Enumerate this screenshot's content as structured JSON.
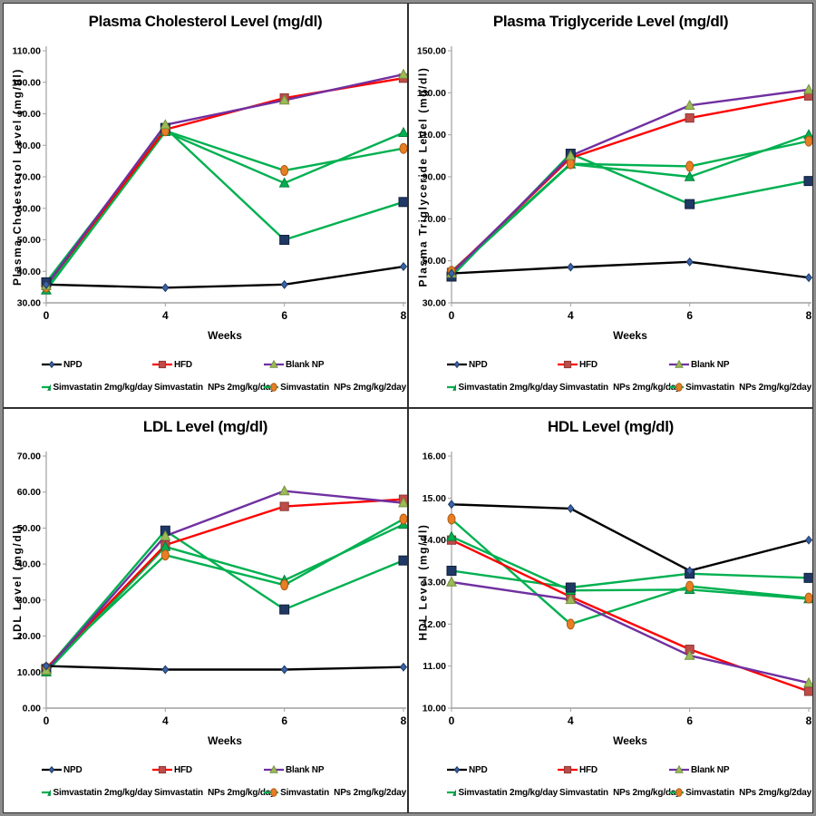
{
  "figure": {
    "layout": "2x2-grid",
    "background": "#ffffff",
    "outer_border_color": "#8c8c8c",
    "panel_border_color": "#2f2f2f"
  },
  "series_styles": [
    {
      "marker": "diamond",
      "line": "#000000",
      "fill": "#3A64A8",
      "edge": "#1F3864",
      "msize": 4.2
    },
    {
      "marker": "square",
      "line": "#FE0000",
      "fill": "#BE4B48",
      "edge": "#8E3937",
      "msize": 4.6
    },
    {
      "marker": "triangle",
      "line": "#7030A0",
      "fill": "#9BBB59",
      "edge": "#75913E",
      "msize": 5.4
    },
    {
      "marker": "triangle",
      "line": "#00B050",
      "fill": "#00B050",
      "edge": "#007E39",
      "msize": 5.4
    },
    {
      "marker": "square",
      "line": "#00B050",
      "fill": "#1F3864",
      "edge": "#11203C",
      "msize": 5.0
    },
    {
      "marker": "circle",
      "line": "#00B050",
      "fill": "#E87E24",
      "edge": "#AE5A11",
      "msize": 4.3
    }
  ],
  "chart_data": [
    {
      "type": "line",
      "title": "Plasma Cholesterol Level (mg/dl)",
      "ylabel": "Plasma Cholesterol Level (mg/dl)",
      "xlabel": "Weeks",
      "ylim": [
        30,
        110
      ],
      "ytick_step": 10,
      "grid": false,
      "legend_position": "bottom",
      "categories": [
        0,
        4,
        6,
        8
      ],
      "series": [
        {
          "name": "NPD",
          "values": [
            35.8,
            34.8,
            35.8,
            41.5
          ]
        },
        {
          "name": "HFD",
          "values": [
            35.5,
            85.0,
            95.0,
            101.3
          ]
        },
        {
          "name": "Blank NP",
          "values": [
            35.5,
            86.5,
            94.3,
            102.5
          ]
        },
        {
          "name": "Simvastatin 2mg/kg/day",
          "values": [
            34.0,
            84.3,
            68.0,
            84.0
          ]
        },
        {
          "name": "Simvastatin  NPs 2mg/kg/day",
          "values": [
            36.5,
            85.5,
            50.0,
            62.0
          ]
        },
        {
          "name": "Simvastatin  NPs 2mg/kg/2day",
          "values": [
            35.0,
            84.6,
            72.0,
            79.0
          ]
        }
      ]
    },
    {
      "type": "line",
      "title": "Plasma Triglyceride Level (mg/dl)",
      "ylabel": "Plasma Triglyceride Level (mg/dl)",
      "xlabel": "Weeks",
      "ylim": [
        30,
        150
      ],
      "ytick_step": 20,
      "grid": false,
      "legend_position": "bottom",
      "categories": [
        0,
        4,
        6,
        8
      ],
      "series": [
        {
          "name": "NPD",
          "values": [
            44.0,
            47.0,
            49.5,
            42.0
          ]
        },
        {
          "name": "HFD",
          "values": [
            44.5,
            99.0,
            118.0,
            128.5
          ]
        },
        {
          "name": "Blank NP",
          "values": [
            44.0,
            100.0,
            124.0,
            131.5
          ]
        },
        {
          "name": "Simvastatin 2mg/kg/day",
          "values": [
            44.0,
            96.0,
            90.0,
            110.0
          ]
        },
        {
          "name": "Simvastatin  NPs 2mg/kg/day",
          "values": [
            42.5,
            101.0,
            77.0,
            88.0
          ]
        },
        {
          "name": "Simvastatin  NPs 2mg/kg/2day",
          "values": [
            45.0,
            96.2,
            95.0,
            107.0
          ]
        }
      ]
    },
    {
      "type": "line",
      "title": "LDL Level (mg/dl)",
      "ylabel": "LDL Level (mg/dl)",
      "xlabel": "Weeks",
      "ylim": [
        0,
        70
      ],
      "ytick_step": 10,
      "grid": false,
      "legend_position": "bottom",
      "categories": [
        0,
        4,
        6,
        8
      ],
      "series": [
        {
          "name": "NPD",
          "values": [
            11.7,
            10.7,
            10.7,
            11.4
          ]
        },
        {
          "name": "HFD",
          "values": [
            11.0,
            45.3,
            56.0,
            58.0
          ]
        },
        {
          "name": "Blank NP",
          "values": [
            10.5,
            47.8,
            60.3,
            57.0
          ]
        },
        {
          "name": "Simvastatin 2mg/kg/day",
          "values": [
            10.0,
            44.8,
            35.5,
            51.0
          ]
        },
        {
          "name": "Simvastatin  NPs 2mg/kg/day",
          "values": [
            10.8,
            49.3,
            27.4,
            41.0
          ]
        },
        {
          "name": "Simvastatin  NPs 2mg/kg/2day",
          "values": [
            11.2,
            42.5,
            34.2,
            52.5
          ]
        }
      ]
    },
    {
      "type": "line",
      "title": "HDL Level (mg/dl)",
      "ylabel": "HDL Level (mg/dl)",
      "xlabel": "Weeks",
      "ylim": [
        10,
        16
      ],
      "ytick_step": 1,
      "grid": false,
      "legend_position": "bottom",
      "categories": [
        0,
        4,
        6,
        8
      ],
      "series": [
        {
          "name": "NPD",
          "values": [
            14.85,
            14.75,
            13.27,
            14.0
          ]
        },
        {
          "name": "HFD",
          "values": [
            14.0,
            12.65,
            11.4,
            10.4
          ]
        },
        {
          "name": "Blank NP",
          "values": [
            13.0,
            12.58,
            11.25,
            10.6
          ]
        },
        {
          "name": "Simvastatin 2mg/kg/day",
          "values": [
            14.08,
            12.8,
            12.82,
            12.6
          ]
        },
        {
          "name": "Simvastatin  NPs 2mg/kg/day",
          "values": [
            13.27,
            12.87,
            13.2,
            13.1
          ]
        },
        {
          "name": "Simvastatin  NPs 2mg/kg/2day",
          "values": [
            14.5,
            12.0,
            12.9,
            12.62
          ]
        }
      ]
    }
  ]
}
